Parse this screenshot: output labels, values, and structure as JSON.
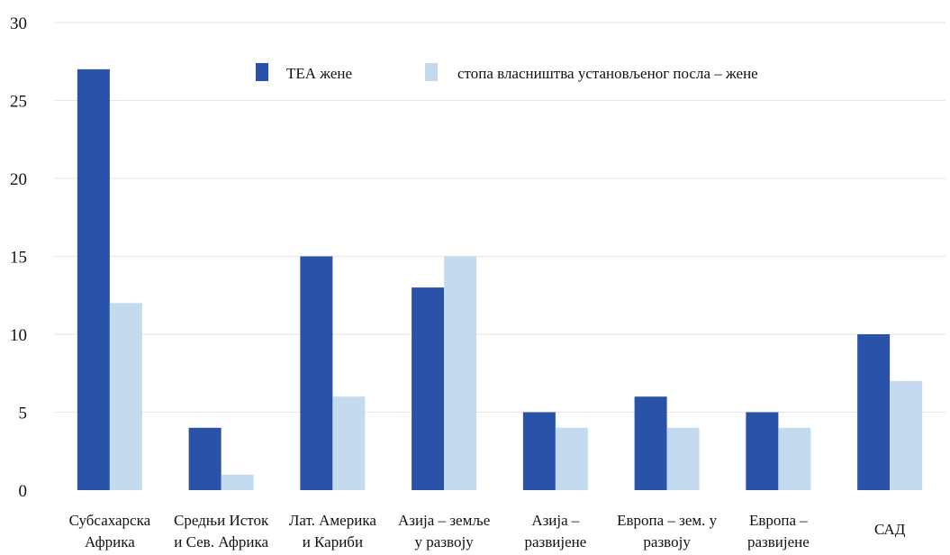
{
  "chart_data": {
    "type": "bar",
    "categories": [
      [
        "Субсахарска",
        "Африка"
      ],
      [
        "Средњи Исток",
        "и Сев. Африка"
      ],
      [
        "Лат. Америка",
        "и Кариби"
      ],
      [
        "Азија – земље",
        "у развоју"
      ],
      [
        "Азија –",
        "развијене"
      ],
      [
        "Европа  – зем. у",
        "развоју"
      ],
      [
        "Европа –",
        "развијене"
      ],
      [
        "САД"
      ]
    ],
    "series": [
      {
        "name": "ТЕА жене",
        "color": "#2a52a8",
        "values": [
          27,
          4,
          15,
          13,
          5,
          6,
          5,
          10
        ]
      },
      {
        "name": "стопа власништва установљеног посла – жене",
        "color": "#c4dbef",
        "values": [
          12,
          1,
          6,
          15,
          4,
          4,
          4,
          7
        ]
      }
    ],
    "ylim": [
      0,
      30
    ],
    "yticks": [
      0,
      5,
      10,
      15,
      20,
      25,
      30
    ],
    "grid": true,
    "legend_position": "top-center",
    "title": "",
    "xlabel": "",
    "ylabel": ""
  }
}
